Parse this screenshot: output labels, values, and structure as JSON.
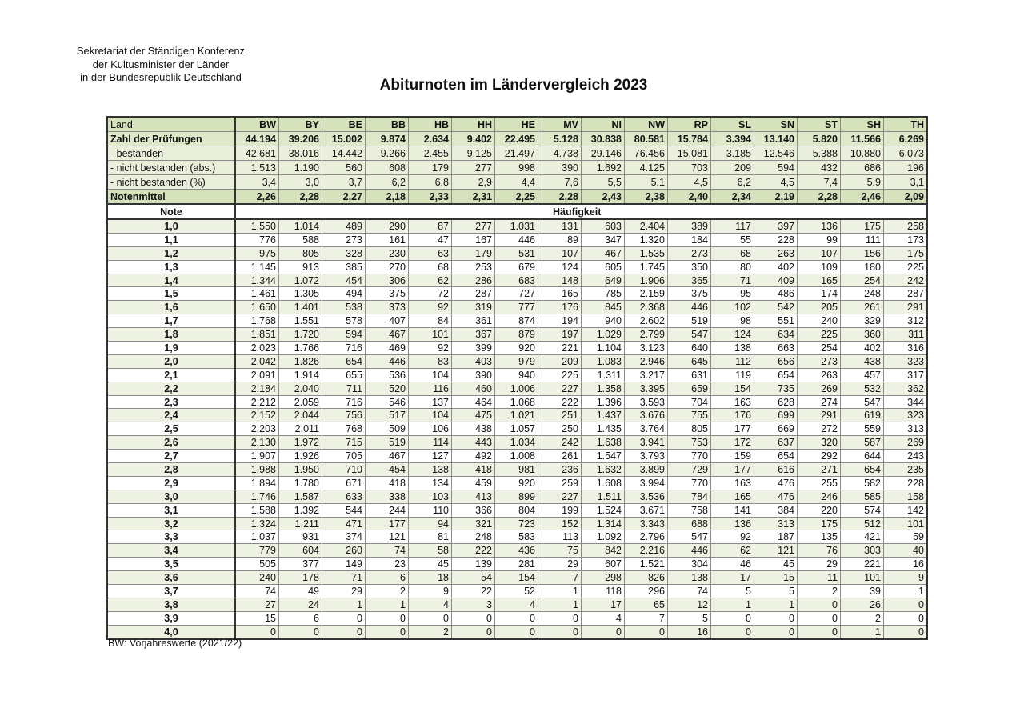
{
  "header": {
    "org_lines": [
      "Sekretariat der Ständigen Konferenz",
      "der Kultusminister der Länder",
      "in der Bundesrepublik Deutschland"
    ],
    "title": "Abiturnoten im Ländervergleich 2023"
  },
  "table": {
    "land_label": "Land",
    "states": [
      "BW",
      "BY",
      "BE",
      "BB",
      "HB",
      "HH",
      "HE",
      "MV",
      "NI",
      "NW",
      "RP",
      "SL",
      "SN",
      "ST",
      "SH",
      "TH"
    ],
    "summary": [
      {
        "label": "Zahl der Prüfungen",
        "kind": "total",
        "values": [
          "44.194",
          "39.206",
          "15.002",
          "9.874",
          "2.634",
          "9.402",
          "22.495",
          "5.128",
          "30.838",
          "80.581",
          "15.784",
          "3.394",
          "13.140",
          "5.820",
          "11.566",
          "6.269"
        ]
      },
      {
        "label": "- bestanden",
        "kind": "sub",
        "values": [
          "42.681",
          "38.016",
          "14.442",
          "9.266",
          "2.455",
          "9.125",
          "21.497",
          "4.738",
          "29.146",
          "76.456",
          "15.081",
          "3.185",
          "12.546",
          "5.388",
          "10.880",
          "6.073"
        ]
      },
      {
        "label": "- nicht bestanden (abs.)",
        "kind": "sub",
        "values": [
          "1.513",
          "1.190",
          "560",
          "608",
          "179",
          "277",
          "998",
          "390",
          "1.692",
          "4.125",
          "703",
          "209",
          "594",
          "432",
          "686",
          "196"
        ]
      },
      {
        "label": "- nicht bestanden (%)",
        "kind": "sub",
        "values": [
          "3,4",
          "3,0",
          "3,7",
          "6,2",
          "6,8",
          "2,9",
          "4,4",
          "7,6",
          "5,5",
          "5,1",
          "4,5",
          "6,2",
          "4,5",
          "7,4",
          "5,9",
          "3,1"
        ]
      },
      {
        "label": "Notenmittel",
        "kind": "mean",
        "values": [
          "2,26",
          "2,28",
          "2,27",
          "2,18",
          "2,33",
          "2,31",
          "2,25",
          "2,28",
          "2,43",
          "2,38",
          "2,40",
          "2,34",
          "2,19",
          "2,28",
          "2,46",
          "2,09"
        ]
      }
    ],
    "note_label": "Note",
    "frequency_label": "Häufigkeit",
    "grades": [
      {
        "note": "1,0",
        "values": [
          "1.550",
          "1.014",
          "489",
          "290",
          "87",
          "277",
          "1.031",
          "131",
          "603",
          "2.404",
          "389",
          "117",
          "397",
          "136",
          "175",
          "258"
        ]
      },
      {
        "note": "1,1",
        "values": [
          "776",
          "588",
          "273",
          "161",
          "47",
          "167",
          "446",
          "89",
          "347",
          "1.320",
          "184",
          "55",
          "228",
          "99",
          "111",
          "173"
        ]
      },
      {
        "note": "1,2",
        "values": [
          "975",
          "805",
          "328",
          "230",
          "63",
          "179",
          "531",
          "107",
          "467",
          "1.535",
          "273",
          "68",
          "263",
          "107",
          "156",
          "175"
        ]
      },
      {
        "note": "1,3",
        "values": [
          "1.145",
          "913",
          "385",
          "270",
          "68",
          "253",
          "679",
          "124",
          "605",
          "1.745",
          "350",
          "80",
          "402",
          "109",
          "180",
          "225"
        ]
      },
      {
        "note": "1,4",
        "values": [
          "1.344",
          "1.072",
          "454",
          "306",
          "62",
          "286",
          "683",
          "148",
          "649",
          "1.906",
          "365",
          "71",
          "409",
          "165",
          "254",
          "242"
        ]
      },
      {
        "note": "1,5",
        "values": [
          "1.461",
          "1.305",
          "494",
          "375",
          "72",
          "287",
          "727",
          "165",
          "785",
          "2.159",
          "375",
          "95",
          "486",
          "174",
          "248",
          "287"
        ]
      },
      {
        "note": "1,6",
        "values": [
          "1.650",
          "1.401",
          "538",
          "373",
          "92",
          "319",
          "777",
          "176",
          "845",
          "2.368",
          "446",
          "102",
          "542",
          "205",
          "261",
          "291"
        ]
      },
      {
        "note": "1,7",
        "values": [
          "1.768",
          "1.551",
          "578",
          "407",
          "84",
          "361",
          "874",
          "194",
          "940",
          "2.602",
          "519",
          "98",
          "551",
          "240",
          "329",
          "312"
        ]
      },
      {
        "note": "1,8",
        "values": [
          "1.851",
          "1.720",
          "594",
          "467",
          "101",
          "367",
          "879",
          "197",
          "1.029",
          "2.799",
          "547",
          "124",
          "634",
          "225",
          "360",
          "311"
        ]
      },
      {
        "note": "1,9",
        "values": [
          "2.023",
          "1.766",
          "716",
          "469",
          "92",
          "399",
          "920",
          "221",
          "1.104",
          "3.123",
          "640",
          "138",
          "663",
          "254",
          "402",
          "316"
        ]
      },
      {
        "note": "2,0",
        "values": [
          "2.042",
          "1.826",
          "654",
          "446",
          "83",
          "403",
          "979",
          "209",
          "1.083",
          "2.946",
          "645",
          "112",
          "656",
          "273",
          "438",
          "323"
        ]
      },
      {
        "note": "2,1",
        "values": [
          "2.091",
          "1.914",
          "655",
          "536",
          "104",
          "390",
          "940",
          "225",
          "1.311",
          "3.217",
          "631",
          "119",
          "654",
          "263",
          "457",
          "317"
        ]
      },
      {
        "note": "2,2",
        "values": [
          "2.184",
          "2.040",
          "711",
          "520",
          "116",
          "460",
          "1.006",
          "227",
          "1.358",
          "3.395",
          "659",
          "154",
          "735",
          "269",
          "532",
          "362"
        ]
      },
      {
        "note": "2,3",
        "values": [
          "2.212",
          "2.059",
          "716",
          "546",
          "137",
          "464",
          "1.068",
          "222",
          "1.396",
          "3.593",
          "704",
          "163",
          "628",
          "274",
          "547",
          "344"
        ]
      },
      {
        "note": "2,4",
        "values": [
          "2.152",
          "2.044",
          "756",
          "517",
          "104",
          "475",
          "1.021",
          "251",
          "1.437",
          "3.676",
          "755",
          "176",
          "699",
          "291",
          "619",
          "323"
        ]
      },
      {
        "note": "2,5",
        "values": [
          "2.203",
          "2.011",
          "768",
          "509",
          "106",
          "438",
          "1.057",
          "250",
          "1.435",
          "3.764",
          "805",
          "177",
          "669",
          "272",
          "559",
          "313"
        ]
      },
      {
        "note": "2,6",
        "values": [
          "2.130",
          "1.972",
          "715",
          "519",
          "114",
          "443",
          "1.034",
          "242",
          "1.638",
          "3.941",
          "753",
          "172",
          "637",
          "320",
          "587",
          "269"
        ]
      },
      {
        "note": "2,7",
        "values": [
          "1.907",
          "1.926",
          "705",
          "467",
          "127",
          "492",
          "1.008",
          "261",
          "1.547",
          "3.793",
          "770",
          "159",
          "654",
          "292",
          "644",
          "243"
        ]
      },
      {
        "note": "2,8",
        "values": [
          "1.988",
          "1.950",
          "710",
          "454",
          "138",
          "418",
          "981",
          "236",
          "1.632",
          "3.899",
          "729",
          "177",
          "616",
          "271",
          "654",
          "235"
        ]
      },
      {
        "note": "2,9",
        "values": [
          "1.894",
          "1.780",
          "671",
          "418",
          "134",
          "459",
          "920",
          "259",
          "1.608",
          "3.994",
          "770",
          "163",
          "476",
          "255",
          "582",
          "228"
        ]
      },
      {
        "note": "3,0",
        "values": [
          "1.746",
          "1.587",
          "633",
          "338",
          "103",
          "413",
          "899",
          "227",
          "1.511",
          "3.536",
          "784",
          "165",
          "476",
          "246",
          "585",
          "158"
        ]
      },
      {
        "note": "3,1",
        "values": [
          "1.588",
          "1.392",
          "544",
          "244",
          "110",
          "366",
          "804",
          "199",
          "1.524",
          "3.671",
          "758",
          "141",
          "384",
          "220",
          "574",
          "142"
        ]
      },
      {
        "note": "3,2",
        "values": [
          "1.324",
          "1.211",
          "471",
          "177",
          "94",
          "321",
          "723",
          "152",
          "1.314",
          "3.343",
          "688",
          "136",
          "313",
          "175",
          "512",
          "101"
        ]
      },
      {
        "note": "3,3",
        "values": [
          "1.037",
          "931",
          "374",
          "121",
          "81",
          "248",
          "583",
          "113",
          "1.092",
          "2.796",
          "547",
          "92",
          "187",
          "135",
          "421",
          "59"
        ]
      },
      {
        "note": "3,4",
        "values": [
          "779",
          "604",
          "260",
          "74",
          "58",
          "222",
          "436",
          "75",
          "842",
          "2.216",
          "446",
          "62",
          "121",
          "76",
          "303",
          "40"
        ]
      },
      {
        "note": "3,5",
        "values": [
          "505",
          "377",
          "149",
          "23",
          "45",
          "139",
          "281",
          "29",
          "607",
          "1.521",
          "304",
          "46",
          "45",
          "29",
          "221",
          "16"
        ]
      },
      {
        "note": "3,6",
        "values": [
          "240",
          "178",
          "71",
          "6",
          "18",
          "54",
          "154",
          "7",
          "298",
          "826",
          "138",
          "17",
          "15",
          "11",
          "101",
          "9"
        ]
      },
      {
        "note": "3,7",
        "values": [
          "74",
          "49",
          "29",
          "2",
          "9",
          "22",
          "52",
          "1",
          "118",
          "296",
          "74",
          "5",
          "5",
          "2",
          "39",
          "1"
        ]
      },
      {
        "note": "3,8",
        "values": [
          "27",
          "24",
          "1",
          "1",
          "4",
          "3",
          "4",
          "1",
          "17",
          "65",
          "12",
          "1",
          "1",
          "0",
          "26",
          "0"
        ]
      },
      {
        "note": "3,9",
        "values": [
          "15",
          "6",
          "0",
          "0",
          "0",
          "0",
          "0",
          "0",
          "4",
          "7",
          "5",
          "0",
          "0",
          "0",
          "2",
          "0"
        ]
      },
      {
        "note": "4,0",
        "values": [
          "0",
          "0",
          "0",
          "0",
          "2",
          "0",
          "0",
          "0",
          "0",
          "0",
          "16",
          "0",
          "0",
          "0",
          "1",
          "0"
        ]
      }
    ]
  },
  "footnote": "BW: Vorjahreswerte (2021/22)"
}
